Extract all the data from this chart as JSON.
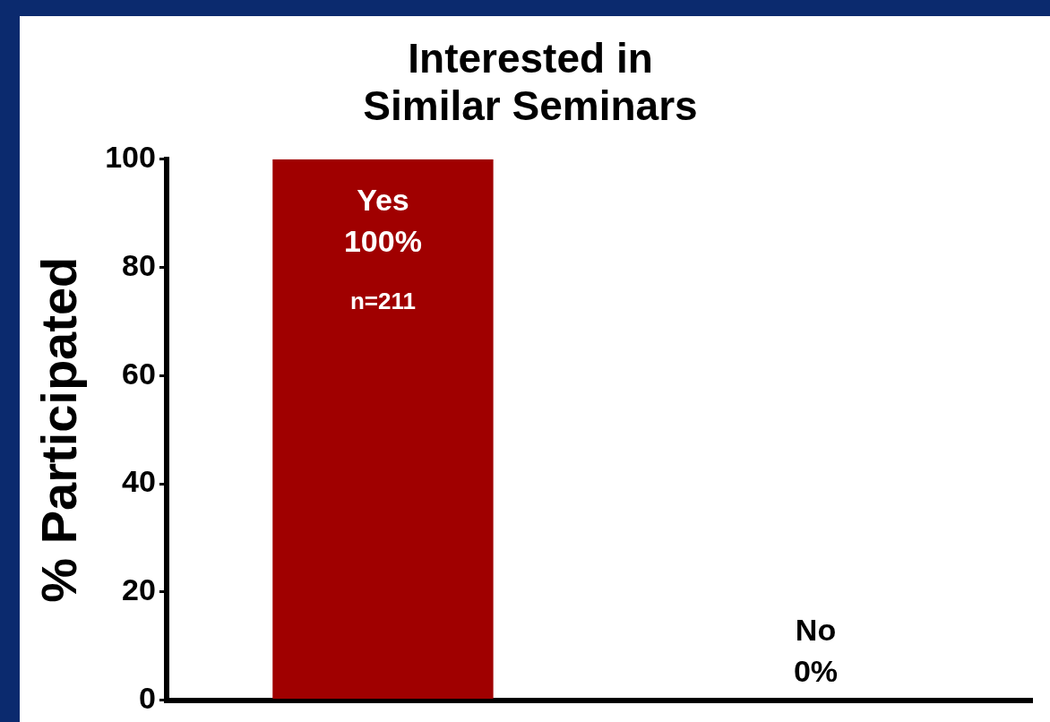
{
  "chart_data": {
    "type": "bar",
    "title": "Interested in\nSimilar Seminars",
    "ylabel": "% Participated",
    "categories": [
      "Yes",
      "No"
    ],
    "values": [
      100,
      0
    ],
    "value_labels": [
      "100%",
      "0%"
    ],
    "color": "#a00000",
    "ylim": [
      0,
      100
    ],
    "yticks": [
      0,
      20,
      40,
      60,
      80,
      100
    ],
    "grid": false,
    "legend": false,
    "tick_labels": "y",
    "annotations": [
      "n=211"
    ]
  }
}
